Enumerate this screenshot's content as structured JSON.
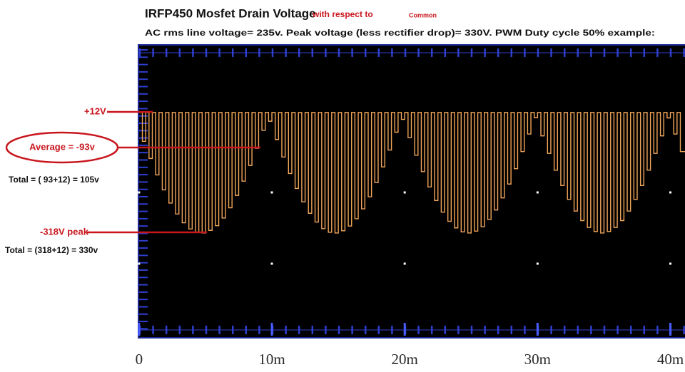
{
  "chart_data": {
    "type": "line",
    "step": "post",
    "title": "IRFP450 Mosfet Drain Voltage",
    "title_note": "with respect to",
    "title_note_small": "Common",
    "subtitle": "AC rms line voltage= 235v. Peak voltage (less rectifier drop)= 330V. PWM Duty cycle 50% example:",
    "annotations": [
      {
        "text": "+12V"
      },
      {
        "text": "Average = -93v"
      },
      {
        "text": "Total = ( 93+12) = 105v"
      },
      {
        "text": "-318V peak"
      },
      {
        "text": "Total = (318+12) = 330v"
      }
    ],
    "color": "#f2a65a",
    "xlim": [
      -0.1,
      41.1
    ],
    "ylim": [
      -607,
      199
    ],
    "xticks": [
      0,
      {
        "value": 10,
        "label": "10m"
      },
      {
        "value": 20,
        "label": "20m"
      },
      {
        "value": 30,
        "label": "30m"
      },
      {
        "value": 40,
        "label": "40m"
      }
    ],
    "x": [
      0,
      0.25,
      0.5,
      0.75,
      1,
      1.25,
      1.5,
      1.75,
      2,
      2.25,
      2.5,
      2.75,
      3,
      3.25,
      3.5,
      3.75,
      4,
      4.25,
      4.5,
      4.75,
      5,
      5.25,
      5.5,
      5.75,
      6,
      6.25,
      6.5,
      6.75,
      7,
      7.25,
      7.5,
      7.75,
      8,
      8.25,
      8.5,
      8.75,
      9,
      9.25,
      9.5,
      9.75,
      10,
      10.25,
      10.5,
      10.75,
      11,
      11.25,
      11.5,
      11.75,
      12,
      12.25,
      12.5,
      12.75,
      13,
      13.25,
      13.5,
      13.75,
      14,
      14.25,
      14.5,
      14.75,
      15,
      15.25,
      15.5,
      15.75,
      16,
      16.25,
      16.5,
      16.75,
      17,
      17.25,
      17.5,
      17.75,
      18,
      18.25,
      18.5,
      18.75,
      19,
      19.25,
      19.5,
      19.75,
      20,
      20.25,
      20.5,
      20.75,
      21,
      21.25,
      21.5,
      21.75,
      22,
      22.25,
      22.5,
      22.75,
      23,
      23.25,
      23.5,
      23.75,
      24,
      24.25,
      24.5,
      24.75,
      25,
      25.25,
      25.5,
      25.75,
      26,
      26.25,
      26.5,
      26.75,
      27,
      27.25,
      27.5,
      27.75,
      28,
      28.25,
      28.5,
      28.75,
      29,
      29.25,
      29.5,
      29.75,
      30,
      30.25,
      30.5,
      30.75,
      31,
      31.25,
      31.5,
      31.75,
      32,
      32.25,
      32.5,
      32.75,
      33,
      33.25,
      33.5,
      33.75,
      34,
      34.25,
      34.5,
      34.75,
      35,
      35.25,
      35.5,
      35.75,
      36,
      36.25,
      36.5,
      36.75,
      37,
      37.25,
      37.5,
      37.75,
      38,
      38.25,
      38.5,
      38.75,
      39,
      39.25,
      39.5,
      39.75,
      40,
      40.25,
      40.5,
      40.75
    ],
    "values": [
      12,
      -67,
      12,
      -114,
      12,
      -159,
      12,
      -200,
      12,
      -236,
      12,
      -266,
      12,
      -290,
      12,
      -307,
      12,
      -316,
      12,
      -318,
      12,
      -311,
      12,
      -298,
      12,
      -277,
      12,
      -249,
      12,
      -215,
      12,
      -176,
      12,
      -133,
      12,
      -86,
      12,
      -37,
      12,
      -12,
      12,
      -62,
      12,
      -110,
      12,
      -155,
      12,
      -196,
      12,
      -233,
      12,
      -264,
      12,
      -288,
      12,
      -306,
      12,
      -316,
      12,
      -318,
      12,
      -312,
      12,
      -299,
      12,
      -279,
      12,
      -252,
      12,
      -219,
      12,
      -180,
      12,
      -137,
      12,
      -91,
      12,
      -42,
      12,
      -7,
      12,
      -57,
      12,
      -105,
      12,
      -150,
      12,
      -192,
      12,
      -229,
      12,
      -261,
      12,
      -286,
      12,
      -304,
      12,
      -315,
      12,
      -318,
      12,
      -313,
      12,
      -301,
      12,
      -281,
      12,
      -255,
      12,
      -222,
      12,
      -184,
      12,
      -142,
      12,
      -95,
      12,
      -47,
      12,
      -2,
      12,
      -52,
      12,
      -100,
      12,
      -146,
      12,
      -188,
      12,
      -226,
      12,
      -258,
      12,
      -284,
      12,
      -303,
      12,
      -314,
      12,
      -318,
      12,
      -314,
      12,
      -303,
      12,
      -284,
      12,
      -258,
      12,
      -226,
      12,
      -188,
      12,
      -146,
      12,
      -100,
      12,
      -52,
      12,
      -3,
      12,
      -47,
      12,
      -95
    ]
  }
}
